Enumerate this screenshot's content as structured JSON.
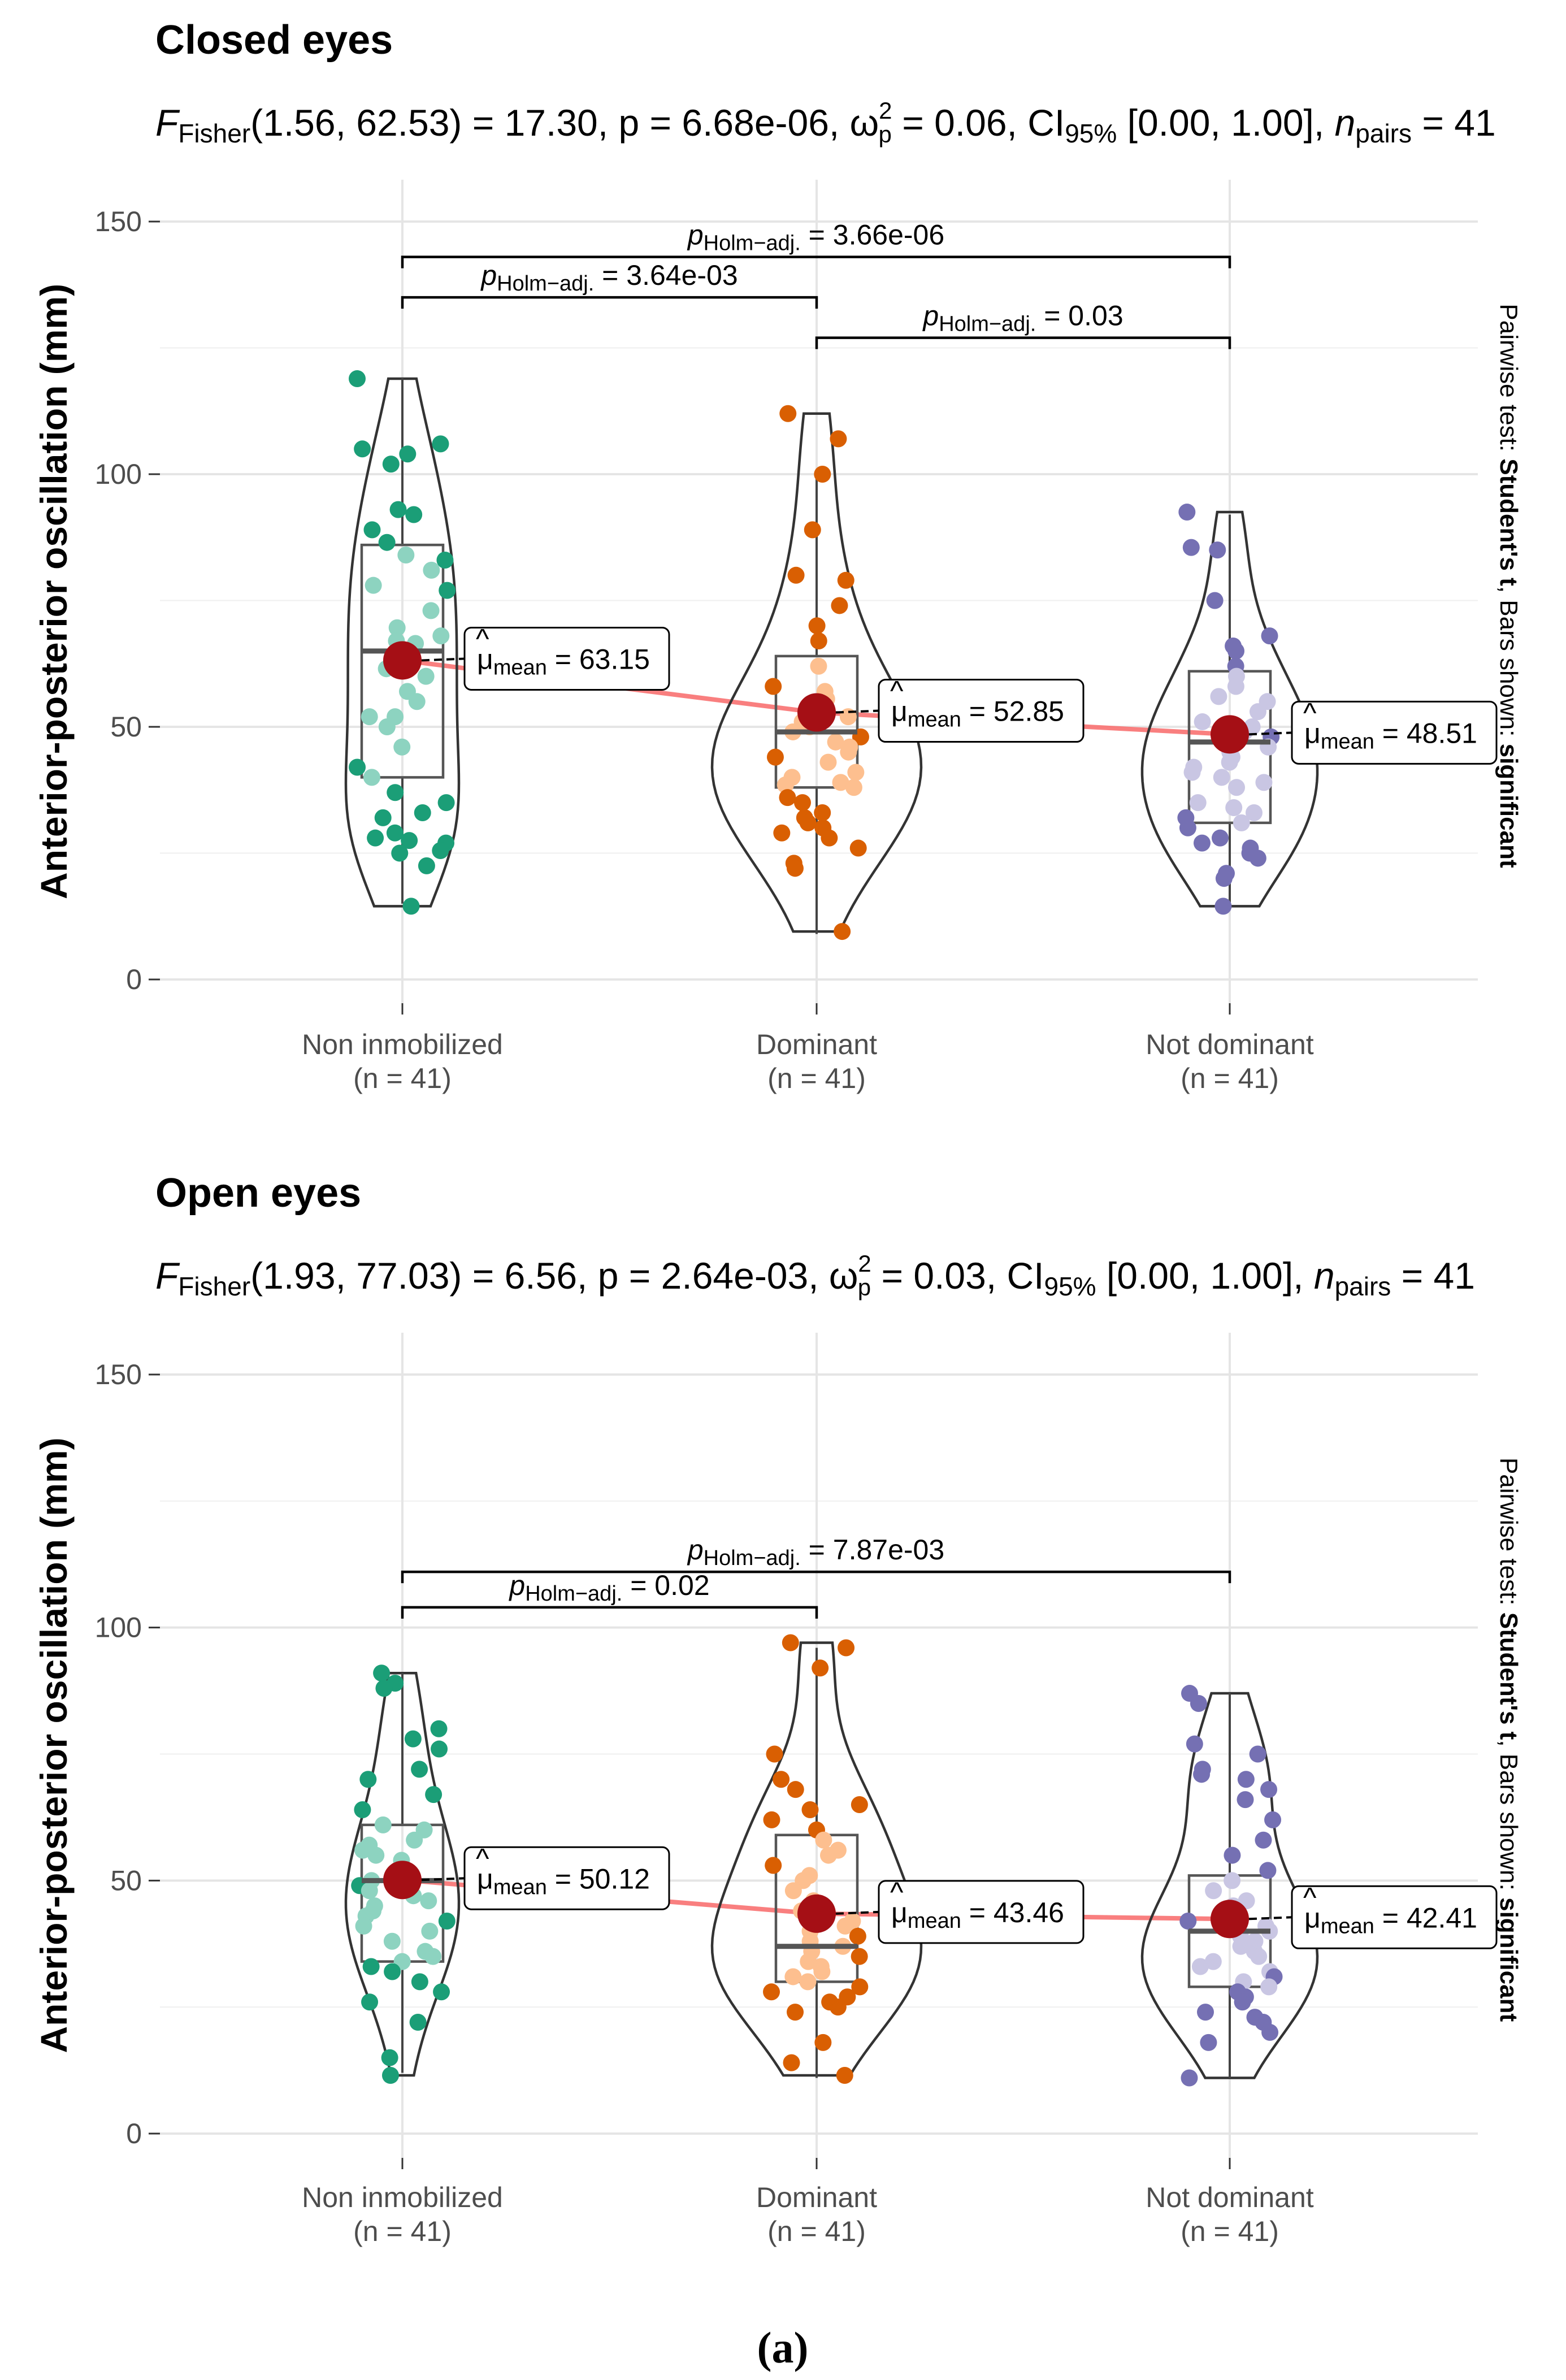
{
  "figure_label": "(a)",
  "chart_data": [
    {
      "type": "violin",
      "title": "Closed eyes",
      "stats": {
        "F_symbol": "F",
        "F_sub": "Fisher",
        "df": "(1.56, 62.53)",
        "F_value": "= 17.30,",
        "p": "p = 6.68e-06,",
        "omega": "ω",
        "omega_sup": "2",
        "omega_sub": "p",
        "omega_value": "= 0.06,",
        "ci": "CI",
        "ci_sub": "95%",
        "ci_range": "[0.00, 1.00],",
        "n": "n",
        "n_sub": "pairs",
        "n_value": "= 41"
      },
      "ylabel": "Anterior-posterior oscillation (mm)",
      "ylim": [
        0,
        150
      ],
      "yticks": [
        "0",
        "50",
        "100",
        "150"
      ],
      "caption_normal_1": "Pairwise test: ",
      "caption_bold_1": "Student's t",
      "caption_normal_2": ", Bars shown: ",
      "caption_bold_2": "significant",
      "groups": [
        {
          "name": "Non inmobilized",
          "n_label": "(n = 41)",
          "color": "#1b9e77",
          "light": "#8dd3c0",
          "mean": 63.15,
          "mean_label": "= 63.15",
          "box": {
            "q1": 40,
            "median": 65,
            "q3": 86,
            "whisker_low": 15,
            "whisker_high": 119
          },
          "points": [
            118.9,
            106,
            105,
            104,
            102,
            93,
            92,
            89,
            86.5,
            84,
            83,
            81,
            78,
            77,
            73,
            69.6,
            68,
            67,
            66.5,
            61.5,
            60,
            57,
            55,
            52,
            52,
            50,
            46,
            42,
            40,
            37,
            35,
            33,
            32,
            29,
            28,
            27.5,
            27,
            25.5,
            25,
            22.5,
            14.5
          ]
        },
        {
          "name": "Dominant",
          "n_label": "(n = 41)",
          "color": "#d95f02",
          "light": "#fdbf8f",
          "mean": 52.85,
          "mean_label": "= 52.85",
          "box": {
            "q1": 38,
            "median": 49,
            "q3": 64,
            "whisker_low": 9,
            "whisker_high": 100
          },
          "points": [
            112,
            107,
            100,
            89,
            80,
            79,
            74,
            70,
            67,
            62,
            58,
            57,
            55.5,
            53,
            52,
            51,
            50,
            49,
            48,
            47,
            46,
            45,
            44,
            43,
            41,
            40,
            39,
            38.5,
            38,
            36,
            35,
            33,
            32,
            31,
            30,
            29,
            28,
            26,
            23,
            22,
            9.5
          ]
        },
        {
          "name": "Not dominant",
          "n_label": "(n = 41)",
          "color": "#7570b3",
          "light": "#c9c6e3",
          "mean": 48.51,
          "mean_label": "= 48.51",
          "box": {
            "q1": 31,
            "median": 47,
            "q3": 61,
            "whisker_low": 15,
            "whisker_high": 92
          },
          "points": [
            92.5,
            85.5,
            85,
            75,
            68,
            66,
            65,
            62,
            60,
            58,
            56,
            55,
            53,
            51,
            50,
            49,
            48,
            47,
            46,
            45,
            44,
            43,
            42,
            41,
            40,
            39,
            38,
            35,
            34,
            33,
            32,
            31,
            30,
            28,
            27,
            26,
            25,
            24,
            21,
            20,
            14.5
          ]
        }
      ],
      "comparisons": [
        {
          "p_symbol": "p",
          "p_sub": "Holm−adj.",
          "value": "= 3.64e-03",
          "from": "Non inmobilized",
          "to": "Dominant",
          "y": 135
        },
        {
          "p_symbol": "p",
          "p_sub": "Holm−adj.",
          "value": "= 0.03",
          "from": "Dominant",
          "to": "Not dominant",
          "y": 127
        },
        {
          "p_symbol": "p",
          "p_sub": "Holm−adj.",
          "value": "= 3.66e-06",
          "from": "Non inmobilized",
          "to": "Not dominant",
          "y": 143
        }
      ],
      "mu_symbol": "μ",
      "mu_sub": "mean"
    },
    {
      "type": "violin",
      "title": "Open eyes",
      "stats": {
        "F_symbol": "F",
        "F_sub": "Fisher",
        "df": "(1.93, 77.03)",
        "F_value": "= 6.56,",
        "p": "p = 2.64e-03,",
        "omega": "ω",
        "omega_sup": "2",
        "omega_sub": "p",
        "omega_value": "= 0.03,",
        "ci": "CI",
        "ci_sub": "95%",
        "ci_range": "[0.00, 1.00],",
        "n": "n",
        "n_sub": "pairs",
        "n_value": "= 41"
      },
      "ylabel": "Anterior-posterior oscillation (mm)",
      "ylim": [
        0,
        150
      ],
      "yticks": [
        "0",
        "50",
        "100",
        "150"
      ],
      "caption_normal_1": "Pairwise test: ",
      "caption_bold_1": "Student's t",
      "caption_normal_2": ", Bars shown: ",
      "caption_bold_2": "significant",
      "groups": [
        {
          "name": "Non inmobilized",
          "n_label": "(n = 41)",
          "color": "#1b9e77",
          "light": "#8dd3c0",
          "mean": 50.12,
          "mean_label": "= 50.12",
          "box": {
            "q1": 34,
            "median": 50,
            "q3": 61,
            "whisker_low": 12,
            "whisker_high": 91
          },
          "points": [
            91,
            89,
            88,
            80,
            78,
            76,
            72,
            70,
            67,
            64,
            61,
            60,
            58,
            57,
            56,
            55,
            54,
            52,
            50,
            49,
            48,
            47,
            46,
            45,
            44,
            43,
            42,
            41,
            40,
            38,
            36,
            35,
            34,
            33,
            32,
            30,
            28,
            26,
            22,
            15,
            11.5
          ]
        },
        {
          "name": "Dominant",
          "n_label": "(n = 41)",
          "color": "#d95f02",
          "light": "#fdbf8f",
          "mean": 43.46,
          "mean_label": "= 43.46",
          "box": {
            "q1": 30,
            "median": 37,
            "q3": 59,
            "whisker_low": 11,
            "whisker_high": 96
          },
          "points": [
            97,
            96,
            92,
            75,
            70,
            68,
            65,
            64,
            62,
            60,
            58,
            56,
            55,
            53,
            51,
            50,
            48,
            46,
            44,
            42,
            41,
            40,
            39,
            38,
            37,
            36,
            35,
            34,
            33,
            32,
            31,
            30,
            29,
            28,
            27,
            26,
            25,
            24,
            18,
            14,
            11.5
          ]
        },
        {
          "name": "Not dominant",
          "n_label": "(n = 41)",
          "color": "#7570b3",
          "light": "#c9c6e3",
          "mean": 42.41,
          "mean_label": "= 42.41",
          "box": {
            "q1": 29,
            "median": 40,
            "q3": 51,
            "whisker_low": 11,
            "whisker_high": 87
          },
          "points": [
            87,
            85,
            77,
            75,
            72,
            71,
            70,
            68,
            66,
            62,
            58,
            55,
            52,
            50,
            48,
            46,
            45,
            44,
            42,
            41,
            40,
            39,
            38,
            37,
            36,
            35,
            34,
            33,
            32,
            31,
            30,
            29,
            28,
            27,
            26,
            24,
            23,
            22,
            20,
            18,
            11
          ]
        }
      ],
      "comparisons": [
        {
          "p_symbol": "p",
          "p_sub": "Holm−adj.",
          "value": "= 0.02",
          "from": "Non inmobilized",
          "to": "Dominant",
          "y": 104
        },
        {
          "p_symbol": "p",
          "p_sub": "Holm−adj.",
          "value": "= 7.87e-03",
          "from": "Non inmobilized",
          "to": "Not dominant",
          "y": 111
        }
      ],
      "mu_symbol": "μ",
      "mu_sub": "mean"
    }
  ]
}
